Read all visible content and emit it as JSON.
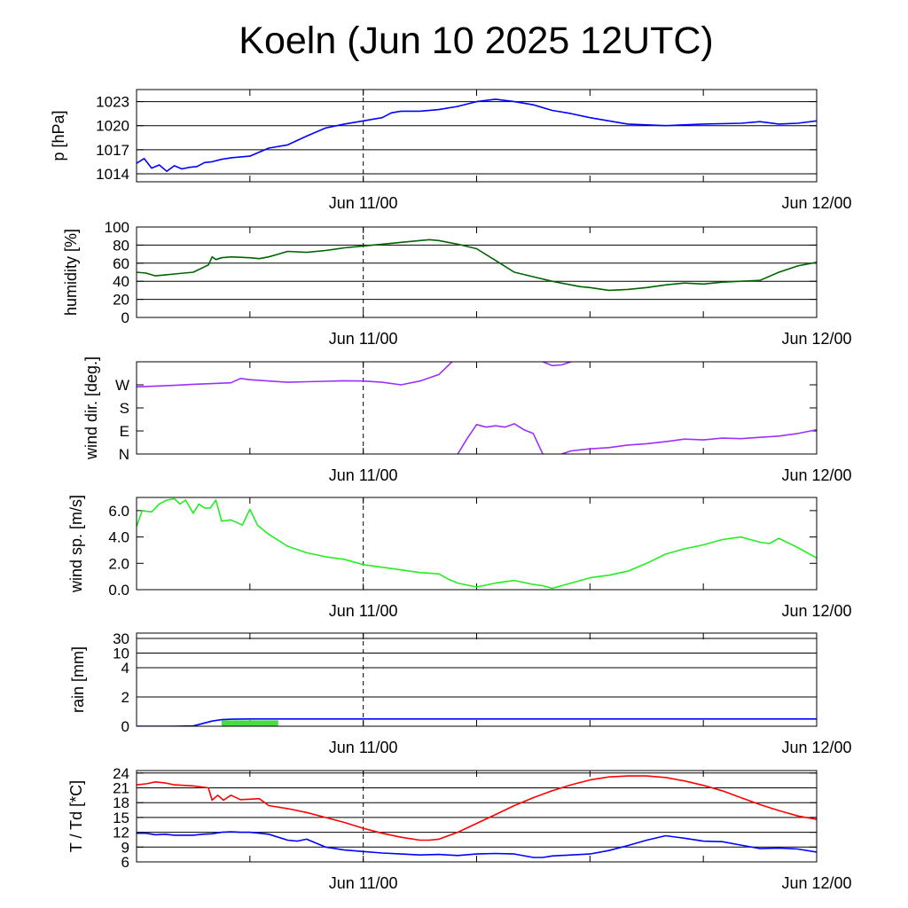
{
  "title": "Koeln (Jun 10 2025 12UTC)",
  "chart_data": [
    {
      "type": "line",
      "ylabel": "p [hPa]",
      "yticks": [
        1014,
        1017,
        1020,
        1023
      ],
      "ylim": [
        1013,
        1024.5
      ],
      "x_range": [
        "Jun 10 12UTC",
        "Jun 12 00UTC"
      ],
      "xticks": [
        {
          "at": 12,
          "label": "Jun 11/00"
        },
        {
          "at": 36,
          "label": "Jun 12/00"
        }
      ],
      "grid": "horizontal",
      "series": [
        {
          "color": "#0000ff",
          "x": [
            0,
            0.4,
            0.8,
            1.2,
            1.6,
            2.0,
            2.4,
            2.8,
            3.2,
            3.6,
            4.0,
            4.5,
            5.0,
            6.0,
            7.0,
            8.0,
            9.0,
            10.0,
            11.0,
            12.0,
            13.0,
            13.5,
            14.0,
            15.0,
            16.0,
            17.0,
            18.0,
            19.0,
            20.0,
            21.0,
            22.0,
            23.0,
            24.0,
            26.0,
            28.0,
            30.0,
            32.0,
            33.0,
            34.0,
            35.0,
            36.0
          ],
          "values": [
            1015.3,
            1015.9,
            1014.7,
            1015.1,
            1014.3,
            1015.0,
            1014.6,
            1014.8,
            1014.9,
            1015.4,
            1015.5,
            1015.8,
            1016.0,
            1016.2,
            1017.2,
            1017.6,
            1018.7,
            1019.7,
            1020.2,
            1020.6,
            1021.0,
            1021.6,
            1021.8,
            1021.8,
            1022.0,
            1022.4,
            1023.0,
            1023.3,
            1023.0,
            1022.6,
            1021.9,
            1021.5,
            1021.0,
            1020.2,
            1020.0,
            1020.2,
            1020.3,
            1020.5,
            1020.2,
            1020.3,
            1020.6
          ]
        }
      ]
    },
    {
      "type": "line",
      "ylabel": "humidity [%]",
      "yticks": [
        0,
        20,
        40,
        60,
        80,
        100
      ],
      "ylim": [
        0,
        100
      ],
      "x_range": [
        "Jun 10 12UTC",
        "Jun 12 00UTC"
      ],
      "xticks": [
        {
          "at": 12,
          "label": "Jun 11/00"
        },
        {
          "at": 36,
          "label": "Jun 12/00"
        }
      ],
      "grid": "horizontal",
      "series": [
        {
          "color": "#006400",
          "x": [
            0,
            0.5,
            1.0,
            1.5,
            2.0,
            3.0,
            3.8,
            4.0,
            4.2,
            4.5,
            5.0,
            6.0,
            6.5,
            7.0,
            7.5,
            8.0,
            9.0,
            10.0,
            11.0,
            12.0,
            13.0,
            14.0,
            15.0,
            15.5,
            16.0,
            17.0,
            18.0,
            19.0,
            20.0,
            21.0,
            22.0,
            23.0,
            23.5,
            24.0,
            25.0,
            26.0,
            27.0,
            28.0,
            29.0,
            30.0,
            31.0,
            32.0,
            33.0,
            34.0,
            35.0,
            36.0
          ],
          "values": [
            50,
            49,
            46,
            47,
            48,
            50,
            58,
            67,
            64,
            66,
            67,
            66,
            65,
            67,
            70,
            73,
            72,
            74,
            77,
            79,
            81,
            83,
            85,
            86,
            85,
            81,
            76,
            63,
            50,
            45,
            40,
            36,
            34,
            33,
            30,
            31,
            33,
            36,
            38,
            37,
            39,
            40,
            41,
            50,
            57,
            61
          ]
        }
      ]
    },
    {
      "type": "line",
      "ylabel": "wind dir. [deg.]",
      "ytick_labels": [
        "N",
        "E",
        "S",
        "W"
      ],
      "ytick_values": [
        0,
        90,
        180,
        270
      ],
      "ylim": [
        0,
        360
      ],
      "x_range": [
        "Jun 10 12UTC",
        "Jun 12 00UTC"
      ],
      "xticks": [
        {
          "at": 12,
          "label": "Jun 11/00"
        },
        {
          "at": 36,
          "label": "Jun 12/00"
        }
      ],
      "grid": "none",
      "series": [
        {
          "color": "#9b30ff",
          "segments": [
            {
              "x": [
                0,
                1,
                2,
                3,
                4,
                5,
                5.5,
                6,
                7,
                8,
                9,
                10,
                11,
                12,
                13,
                14,
                15,
                16,
                16.7
              ],
              "values": [
                262,
                265,
                268,
                272,
                275,
                278,
                295,
                290,
                285,
                280,
                282,
                284,
                286,
                285,
                280,
                270,
                285,
                310,
                360
              ]
            },
            {
              "x": [
                21.5,
                22,
                22.5,
                23
              ],
              "values": [
                360,
                345,
                348,
                360
              ]
            },
            {
              "x": [
                17,
                17.5,
                18,
                18.5,
                19,
                19.5,
                20,
                20.5,
                21,
                21.5
              ],
              "values": [
                0,
                60,
                115,
                105,
                110,
                105,
                118,
                95,
                80,
                0
              ]
            },
            {
              "x": [
                22.5,
                23,
                24,
                25,
                26,
                27,
                28,
                29,
                30,
                31,
                32,
                33,
                34,
                35,
                36
              ],
              "values": [
                0,
                12,
                20,
                25,
                35,
                40,
                48,
                58,
                55,
                62,
                60,
                65,
                70,
                80,
                95
              ]
            }
          ]
        }
      ]
    },
    {
      "type": "line",
      "ylabel": "wind sp. [m/s]",
      "yticks": [
        0.0,
        2.0,
        4.0,
        6.0
      ],
      "ylim": [
        0,
        7
      ],
      "x_range": [
        "Jun 10 12UTC",
        "Jun 12 00UTC"
      ],
      "xticks": [
        {
          "at": 12,
          "label": "Jun 11/00"
        },
        {
          "at": 36,
          "label": "Jun 12/00"
        }
      ],
      "grid": "none",
      "series": [
        {
          "color": "#22ee22",
          "x": [
            0,
            0.3,
            0.8,
            1.2,
            1.6,
            2.0,
            2.3,
            2.6,
            3.0,
            3.3,
            3.6,
            3.9,
            4.2,
            4.5,
            5.0,
            5.3,
            5.6,
            6.0,
            6.4,
            7.0,
            8.0,
            9.0,
            10.0,
            11.0,
            12.0,
            13.0,
            14.0,
            15.0,
            16.0,
            16.5,
            17.0,
            18.0,
            19.0,
            20.0,
            21.0,
            21.5,
            22.0,
            23.0,
            24.0,
            25.0,
            26.0,
            27.0,
            28.0,
            29.0,
            30.0,
            31.0,
            32.0,
            33.0,
            33.5,
            34.0,
            35.0,
            36.0
          ],
          "values": [
            4.8,
            6.0,
            5.9,
            6.5,
            6.8,
            6.9,
            6.5,
            6.8,
            5.8,
            6.5,
            6.2,
            6.2,
            6.8,
            5.2,
            5.3,
            5.1,
            4.9,
            6.1,
            4.9,
            4.2,
            3.3,
            2.8,
            2.5,
            2.3,
            1.9,
            1.7,
            1.5,
            1.3,
            1.2,
            0.8,
            0.5,
            0.2,
            0.5,
            0.7,
            0.4,
            0.3,
            0.1,
            0.5,
            0.9,
            1.1,
            1.4,
            2.0,
            2.7,
            3.1,
            3.4,
            3.8,
            4.0,
            3.6,
            3.5,
            3.9,
            3.2,
            2.4
          ]
        }
      ]
    },
    {
      "type": "line",
      "ylabel": "rain [mm]",
      "yticks": [
        0,
        2,
        4,
        10,
        30
      ],
      "ylim": [
        0,
        30
      ],
      "x_range": [
        "Jun 10 12UTC",
        "Jun 12 00UTC"
      ],
      "xticks": [
        {
          "at": 12,
          "label": "Jun 11/00"
        },
        {
          "at": 36,
          "label": "Jun 12/00"
        }
      ],
      "grid": "horizontal",
      "series": [
        {
          "color": "#0000ff",
          "x": [
            0,
            1,
            2,
            3,
            4,
            4.5,
            5,
            6,
            8,
            12,
            24,
            36
          ],
          "values": [
            0,
            0,
            0,
            0.02,
            0.35,
            0.45,
            0.48,
            0.5,
            0.5,
            0.5,
            0.5,
            0.5
          ]
        }
      ],
      "bars": [
        {
          "color": "#44dd44",
          "x0": 4.5,
          "x1": 7.5,
          "value": 0.4
        }
      ]
    },
    {
      "type": "line",
      "ylabel": "T / Td [*C]",
      "yticks": [
        6,
        9,
        12,
        15,
        18,
        21,
        24
      ],
      "ylim": [
        6,
        24.5
      ],
      "x_range": [
        "Jun 10 12UTC",
        "Jun 12 00UTC"
      ],
      "xticks": [
        {
          "at": 12,
          "label": "Jun 11/00"
        },
        {
          "at": 36,
          "label": "Jun 12/00"
        }
      ],
      "grid": "horizontal",
      "series": [
        {
          "color": "#ff0000",
          "x": [
            0,
            0.5,
            1.0,
            1.5,
            2.0,
            3.0,
            3.8,
            4.0,
            4.3,
            4.6,
            5.0,
            5.5,
            6.0,
            6.5,
            7.0,
            8.0,
            9.0,
            10.0,
            11.0,
            12.0,
            13.0,
            14.0,
            15.0,
            15.5,
            16.0,
            17.0,
            18.0,
            19.0,
            20.0,
            21.0,
            22.0,
            23.0,
            24.0,
            25.0,
            26.0,
            27.0,
            28.0,
            29.0,
            30.0,
            31.0,
            32.0,
            33.0,
            34.0,
            35.0,
            36.0
          ],
          "values": [
            21.6,
            21.8,
            22.2,
            22.0,
            21.6,
            21.4,
            21.0,
            18.5,
            19.5,
            18.5,
            19.5,
            18.6,
            18.7,
            18.8,
            17.4,
            16.8,
            16.0,
            15.0,
            14.0,
            12.8,
            11.8,
            11.0,
            10.4,
            10.4,
            10.6,
            12.0,
            13.8,
            15.6,
            17.4,
            19.0,
            20.4,
            21.6,
            22.6,
            23.2,
            23.4,
            23.4,
            23.1,
            22.4,
            21.5,
            20.4,
            19.0,
            17.6,
            16.4,
            15.3,
            14.6
          ]
        },
        {
          "color": "#0000ff",
          "x": [
            0,
            0.5,
            1.0,
            1.5,
            2.0,
            3.0,
            3.5,
            4.0,
            4.5,
            5.0,
            5.5,
            6.0,
            6.5,
            7.0,
            8.0,
            8.5,
            9.0,
            10.0,
            11.0,
            12.0,
            13.0,
            14.0,
            15.0,
            16.0,
            17.0,
            18.0,
            19.0,
            20.0,
            21.0,
            21.5,
            22.0,
            23.0,
            24.0,
            25.0,
            26.0,
            27.0,
            28.0,
            29.0,
            30.0,
            31.0,
            32.0,
            33.0,
            34.0,
            35.0,
            36.0
          ],
          "values": [
            11.8,
            11.8,
            11.5,
            11.6,
            11.4,
            11.4,
            11.6,
            11.7,
            12.0,
            12.1,
            12.0,
            12.0,
            11.8,
            11.6,
            10.4,
            10.2,
            10.6,
            9.0,
            8.4,
            8.1,
            7.8,
            7.6,
            7.4,
            7.5,
            7.3,
            7.6,
            7.7,
            7.6,
            6.9,
            6.9,
            7.2,
            7.4,
            7.6,
            8.3,
            9.3,
            10.4,
            11.3,
            10.8,
            10.2,
            10.1,
            9.4,
            8.7,
            8.8,
            8.6,
            8.0
          ]
        }
      ]
    }
  ]
}
